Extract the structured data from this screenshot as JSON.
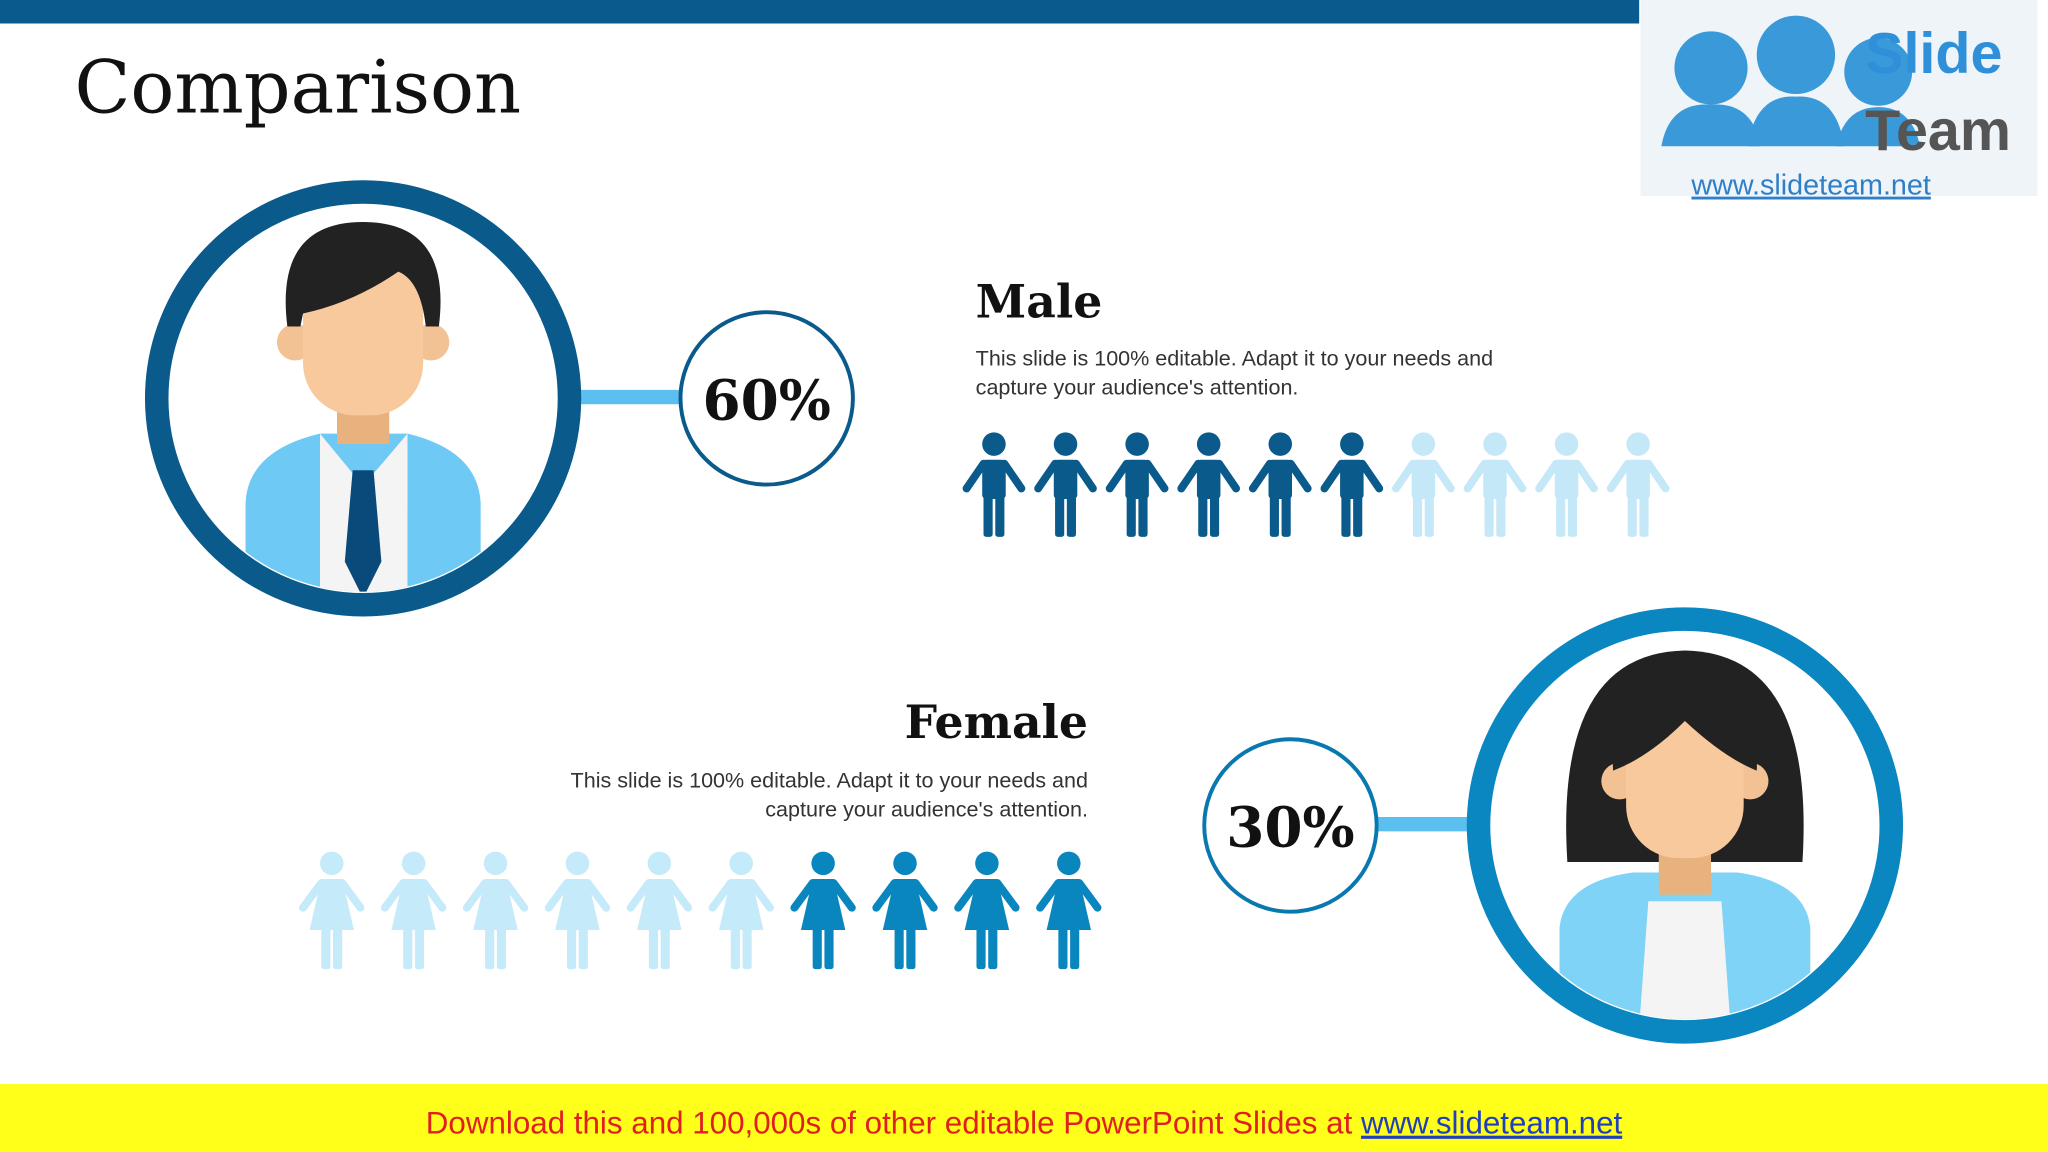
{
  "title": "Comparison",
  "logo": {
    "word1": "Slide",
    "word2": "Team",
    "url": "www.slideteam.net"
  },
  "male": {
    "heading": "Male",
    "percent": "60%",
    "description": [
      "This slide is 100% editable. Adapt it to your needs and",
      "capture your audience's attention."
    ]
  },
  "female": {
    "heading": "Female",
    "percent": "30%",
    "description": [
      "This slide is 100% editable. Adapt it to your needs and",
      "capture your audience's attention."
    ]
  },
  "footer": {
    "text": "Download this and 100,000s of other editable PowerPoint Slides at",
    "link": "www.slideteam.net"
  }
}
